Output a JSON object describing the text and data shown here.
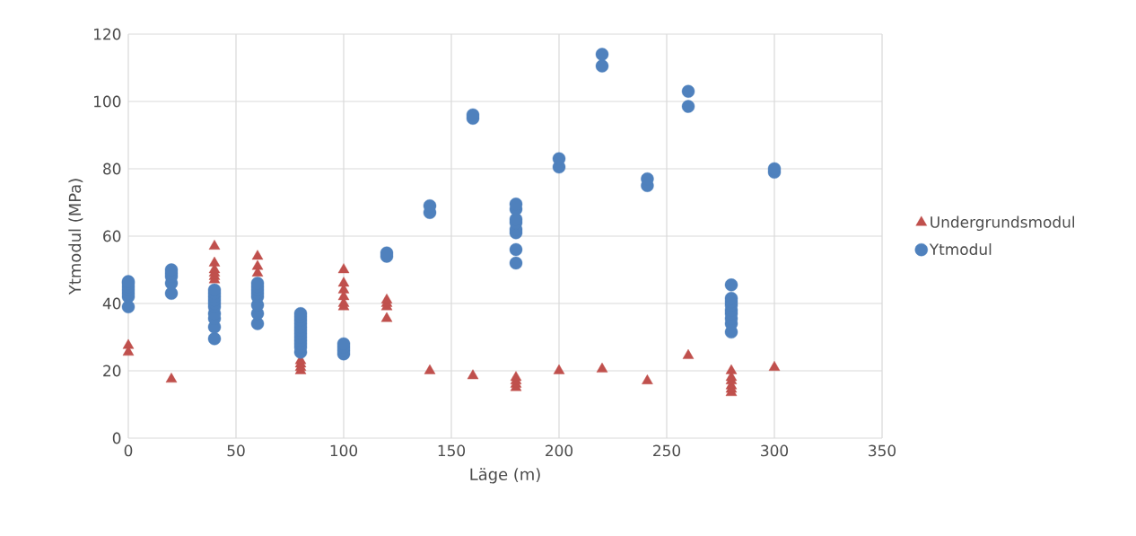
{
  "chart_data": {
    "type": "scatter",
    "xlabel": "Läge (m)",
    "ylabel": "Ytmodul (MPa)",
    "xlim": [
      0,
      350
    ],
    "xticks": [
      0,
      50,
      100,
      150,
      200,
      250,
      300,
      350
    ],
    "ylim": [
      0,
      120
    ],
    "yticks": [
      0,
      20,
      40,
      60,
      80,
      100,
      120
    ],
    "grid": true,
    "legend": "right",
    "series": [
      {
        "name": "Undergrundsmodul",
        "color": "#c0504d",
        "marker": "triangle",
        "x": [
          0,
          0,
          20,
          40,
          40,
          40,
          40,
          40,
          40,
          60,
          60,
          60,
          80,
          80,
          80,
          80,
          100,
          100,
          100,
          100,
          100,
          100,
          120,
          120,
          120,
          120,
          140,
          160,
          180,
          180,
          180,
          180,
          200,
          220,
          241,
          260,
          280,
          280,
          280,
          280,
          280,
          280,
          300
        ],
        "values": [
          25.5,
          27.5,
          17.5,
          47,
          48,
          49,
          50,
          52,
          57,
          49,
          51,
          54,
          20,
          21,
          22,
          23,
          39,
          40,
          42,
          44,
          46,
          50,
          35.5,
          39,
          40,
          41,
          20,
          18.5,
          15,
          16,
          17,
          18,
          20,
          20.5,
          17,
          24.5,
          13.5,
          14.5,
          15.5,
          17,
          18,
          20,
          21
        ]
      },
      {
        "name": "Ytmodul",
        "color": "#4f81bd",
        "marker": "circle",
        "x": [
          0,
          0,
          0,
          0,
          0,
          0,
          0,
          20,
          20,
          20,
          20,
          20,
          40,
          40,
          40,
          40,
          40,
          40,
          40,
          40,
          40,
          40,
          60,
          60,
          60,
          60,
          60,
          60,
          60,
          60,
          80,
          80,
          80,
          80,
          80,
          80,
          80,
          80,
          80,
          80,
          80,
          80,
          100,
          100,
          100,
          100,
          120,
          120,
          140,
          140,
          160,
          160,
          180,
          180,
          180,
          180,
          180,
          180,
          180,
          180,
          200,
          200,
          220,
          220,
          241,
          241,
          260,
          260,
          280,
          280,
          280,
          280,
          280,
          280,
          280,
          280,
          280,
          300,
          300
        ],
        "values": [
          39,
          42,
          43,
          44,
          45,
          46,
          46.5,
          43,
          46,
          48,
          49,
          50,
          29.5,
          33,
          35.5,
          37,
          39,
          40,
          41,
          42,
          43,
          44,
          34,
          37,
          39.5,
          42,
          43,
          44,
          45,
          46,
          25.5,
          27,
          28,
          29,
          30,
          31,
          32,
          33,
          34,
          35,
          36,
          37,
          25,
          26,
          27,
          28,
          54,
          55,
          67,
          69,
          95,
          96,
          52,
          56,
          61,
          62,
          64,
          65,
          68,
          69.5,
          80.5,
          83,
          110.5,
          114,
          75,
          77,
          98.5,
          103,
          31.5,
          34,
          35.5,
          37,
          38,
          39.5,
          40.5,
          41.5,
          45.5,
          79,
          80
        ]
      }
    ]
  }
}
